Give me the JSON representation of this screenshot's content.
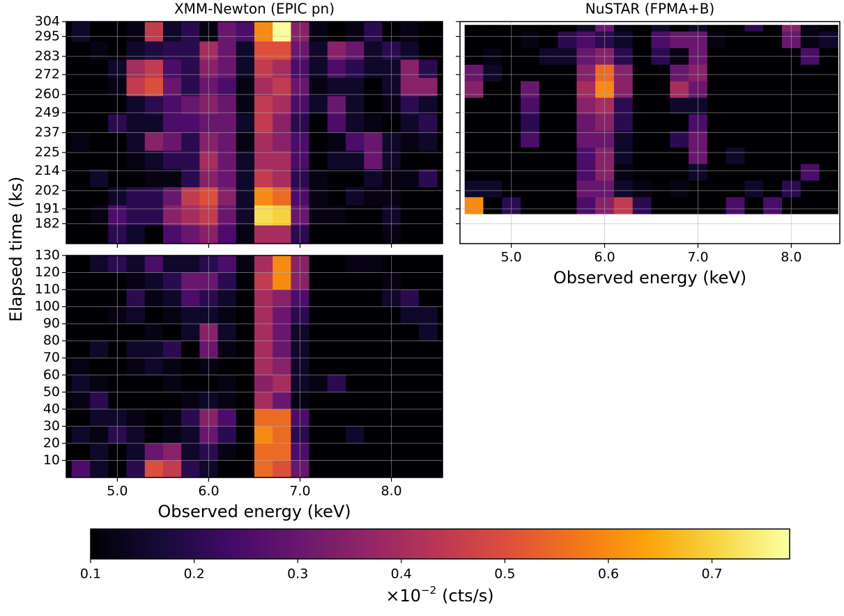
{
  "chart_data": [
    {
      "type": "heatmap",
      "title": "XMM-Newton (EPIC pn)",
      "ylabel": "Elapsed time (ks)",
      "xlim": [
        4.44,
        8.56
      ],
      "ylim": [
        170,
        304
      ],
      "xticks": [
        5,
        6,
        7,
        8
      ],
      "yticks": [
        182,
        191,
        202,
        214,
        225,
        237,
        249,
        260,
        272,
        283,
        295,
        304
      ],
      "xbins": [
        4.5,
        4.7,
        4.9,
        5.1,
        5.3,
        5.5,
        5.7,
        5.9,
        6.1,
        6.3,
        6.5,
        6.7,
        6.9,
        7.1,
        7.3,
        7.5,
        7.7,
        7.9,
        8.1,
        8.3,
        8.5
      ],
      "ybins": [
        304,
        292,
        281,
        270,
        259,
        248,
        237,
        226,
        215,
        204,
        193,
        181,
        170
      ],
      "values": [
        [
          0.15,
          0.1,
          0.1,
          0.12,
          0.45,
          0.15,
          0.2,
          0.12,
          0.3,
          0.25,
          0.6,
          0.77,
          0.35,
          0.12,
          0.1,
          0.12,
          0.2,
          0.1,
          0.12,
          0.1
        ],
        [
          0.1,
          0.12,
          0.1,
          0.15,
          0.18,
          0.2,
          0.2,
          0.4,
          0.3,
          0.15,
          0.5,
          0.5,
          0.3,
          0.15,
          0.35,
          0.3,
          0.15,
          0.2,
          0.15,
          0.1
        ],
        [
          0.1,
          0.1,
          0.15,
          0.4,
          0.45,
          0.25,
          0.2,
          0.35,
          0.3,
          0.15,
          0.45,
          0.4,
          0.25,
          0.15,
          0.25,
          0.2,
          0.15,
          0.15,
          0.35,
          0.2
        ],
        [
          0.1,
          0.1,
          0.12,
          0.45,
          0.5,
          0.3,
          0.2,
          0.3,
          0.25,
          0.12,
          0.4,
          0.45,
          0.3,
          0.12,
          0.15,
          0.15,
          0.1,
          0.15,
          0.35,
          0.35
        ],
        [
          0.1,
          0.1,
          0.1,
          0.15,
          0.2,
          0.25,
          0.3,
          0.35,
          0.3,
          0.12,
          0.45,
          0.4,
          0.25,
          0.15,
          0.3,
          0.15,
          0.1,
          0.12,
          0.2,
          0.15
        ],
        [
          0.1,
          0.1,
          0.2,
          0.15,
          0.15,
          0.25,
          0.25,
          0.3,
          0.3,
          0.15,
          0.45,
          0.35,
          0.2,
          0.1,
          0.25,
          0.15,
          0.12,
          0.1,
          0.15,
          0.2
        ],
        [
          0.12,
          0.1,
          0.1,
          0.15,
          0.35,
          0.3,
          0.2,
          0.35,
          0.3,
          0.12,
          0.4,
          0.35,
          0.25,
          0.1,
          0.12,
          0.25,
          0.3,
          0.15,
          0.12,
          0.15
        ],
        [
          0.1,
          0.1,
          0.1,
          0.12,
          0.15,
          0.2,
          0.2,
          0.4,
          0.3,
          0.15,
          0.4,
          0.4,
          0.25,
          0.1,
          0.15,
          0.15,
          0.3,
          0.15,
          0.1,
          0.1
        ],
        [
          0.1,
          0.15,
          0.1,
          0.1,
          0.12,
          0.12,
          0.2,
          0.35,
          0.3,
          0.15,
          0.45,
          0.4,
          0.2,
          0.12,
          0.1,
          0.1,
          0.15,
          0.12,
          0.12,
          0.2
        ],
        [
          0.1,
          0.1,
          0.15,
          0.2,
          0.2,
          0.3,
          0.45,
          0.5,
          0.35,
          0.15,
          0.6,
          0.55,
          0.25,
          0.12,
          0.1,
          0.15,
          0.12,
          0.12,
          0.1,
          0.1
        ],
        [
          0.1,
          0.12,
          0.25,
          0.2,
          0.2,
          0.35,
          0.4,
          0.45,
          0.3,
          0.15,
          0.72,
          0.7,
          0.3,
          0.12,
          0.12,
          0.1,
          0.1,
          0.15,
          0.1,
          0.1
        ],
        [
          0.1,
          0.1,
          0.2,
          0.15,
          0.1,
          0.25,
          0.3,
          0.35,
          0.25,
          0.12,
          0.4,
          0.4,
          0.2,
          0.1,
          0.1,
          0.1,
          0.1,
          0.12,
          0.1,
          0.1
        ]
      ]
    },
    {
      "type": "heatmap",
      "xlabel": "Observed energy (keV)",
      "xlim": [
        4.44,
        8.56
      ],
      "ylim": [
        0,
        130
      ],
      "xticks": [
        {
          "value": 5,
          "label": "5.0"
        },
        {
          "value": 6,
          "label": "6.0"
        },
        {
          "value": 7,
          "label": "7.0"
        },
        {
          "value": 8,
          "label": "8.0"
        }
      ],
      "yticks": [
        10,
        20,
        30,
        40,
        50,
        60,
        70,
        80,
        90,
        100,
        110,
        120,
        130
      ],
      "xbins": [
        4.5,
        4.7,
        4.9,
        5.1,
        5.3,
        5.5,
        5.7,
        5.9,
        6.1,
        6.3,
        6.5,
        6.7,
        6.9,
        7.1,
        7.3,
        7.5,
        7.7,
        7.9,
        8.1,
        8.3,
        8.5
      ],
      "ybins": [
        130,
        120,
        110,
        100,
        90,
        80,
        70,
        60,
        50,
        40,
        30,
        20,
        10,
        0
      ],
      "values": [
        [
          0.1,
          0.15,
          0.2,
          0.15,
          0.25,
          0.15,
          0.15,
          0.2,
          0.25,
          0.12,
          0.4,
          0.6,
          0.35,
          0.1,
          0.1,
          0.12,
          0.12,
          0.1,
          0.1,
          0.1
        ],
        [
          0.1,
          0.1,
          0.1,
          0.12,
          0.15,
          0.2,
          0.3,
          0.3,
          0.2,
          0.1,
          0.45,
          0.6,
          0.35,
          0.1,
          0.1,
          0.1,
          0.1,
          0.12,
          0.1,
          0.1
        ],
        [
          0.1,
          0.1,
          0.1,
          0.2,
          0.12,
          0.15,
          0.25,
          0.2,
          0.15,
          0.1,
          0.4,
          0.35,
          0.25,
          0.1,
          0.1,
          0.1,
          0.1,
          0.15,
          0.2,
          0.1
        ],
        [
          0.1,
          0.1,
          0.12,
          0.15,
          0.1,
          0.12,
          0.15,
          0.15,
          0.12,
          0.1,
          0.4,
          0.3,
          0.2,
          0.1,
          0.1,
          0.1,
          0.1,
          0.1,
          0.15,
          0.15
        ],
        [
          0.1,
          0.1,
          0.1,
          0.1,
          0.12,
          0.1,
          0.15,
          0.35,
          0.15,
          0.1,
          0.4,
          0.3,
          0.15,
          0.1,
          0.1,
          0.1,
          0.1,
          0.1,
          0.1,
          0.15
        ],
        [
          0.1,
          0.15,
          0.1,
          0.15,
          0.15,
          0.2,
          0.1,
          0.3,
          0.12,
          0.1,
          0.4,
          0.3,
          0.15,
          0.1,
          0.1,
          0.1,
          0.1,
          0.1,
          0.1,
          0.1
        ],
        [
          0.12,
          0.1,
          0.1,
          0.12,
          0.15,
          0.12,
          0.1,
          0.12,
          0.1,
          0.1,
          0.4,
          0.35,
          0.15,
          0.1,
          0.1,
          0.1,
          0.1,
          0.1,
          0.1,
          0.1
        ],
        [
          0.15,
          0.12,
          0.1,
          0.1,
          0.1,
          0.12,
          0.1,
          0.1,
          0.12,
          0.1,
          0.35,
          0.4,
          0.15,
          0.12,
          0.2,
          0.1,
          0.1,
          0.1,
          0.1,
          0.1
        ],
        [
          0.12,
          0.2,
          0.1,
          0.1,
          0.1,
          0.1,
          0.12,
          0.15,
          0.12,
          0.1,
          0.4,
          0.3,
          0.12,
          0.1,
          0.1,
          0.1,
          0.1,
          0.1,
          0.1,
          0.1
        ],
        [
          0.1,
          0.15,
          0.15,
          0.12,
          0.1,
          0.12,
          0.2,
          0.35,
          0.25,
          0.1,
          0.55,
          0.55,
          0.25,
          0.1,
          0.1,
          0.1,
          0.1,
          0.1,
          0.1,
          0.1
        ],
        [
          0.15,
          0.12,
          0.2,
          0.15,
          0.1,
          0.12,
          0.15,
          0.3,
          0.2,
          0.1,
          0.6,
          0.55,
          0.2,
          0.1,
          0.1,
          0.15,
          0.1,
          0.1,
          0.1,
          0.1
        ],
        [
          0.1,
          0.15,
          0.1,
          0.15,
          0.3,
          0.35,
          0.15,
          0.2,
          0.12,
          0.1,
          0.55,
          0.55,
          0.25,
          0.1,
          0.1,
          0.1,
          0.1,
          0.1,
          0.1,
          0.1
        ],
        [
          0.25,
          0.15,
          0.1,
          0.2,
          0.5,
          0.45,
          0.2,
          0.15,
          0.1,
          0.1,
          0.55,
          0.5,
          0.3,
          0.1,
          0.1,
          0.1,
          0.1,
          0.1,
          0.1,
          0.1
        ]
      ]
    },
    {
      "type": "heatmap",
      "title": "NuSTAR (FPMA+B)",
      "xlabel": "Observed energy (keV)",
      "xlim": [
        4.45,
        8.52
      ],
      "ylim": [
        170,
        304
      ],
      "xticks": [
        {
          "value": 5,
          "label": "5.0"
        },
        {
          "value": 6,
          "label": "6.0"
        },
        {
          "value": 7,
          "label": "7.0"
        },
        {
          "value": 8,
          "label": "8.0"
        }
      ],
      "yticks": [
        182,
        191,
        202,
        214,
        225,
        237,
        249,
        260,
        272,
        283,
        295,
        304
      ],
      "xbins": [
        4.5,
        4.7,
        4.9,
        5.1,
        5.3,
        5.5,
        5.7,
        5.9,
        6.1,
        6.3,
        6.5,
        6.7,
        6.9,
        7.1,
        7.3,
        7.5,
        7.7,
        7.9,
        8.1,
        8.3,
        8.5
      ],
      "ybins": [
        302,
        298,
        288,
        278,
        268,
        258,
        248,
        238,
        228,
        218,
        208,
        198,
        188
      ],
      "values": [
        [
          0.1,
          0.1,
          0.1,
          0.1,
          0.1,
          0.1,
          0.15,
          0.3,
          0.12,
          0.1,
          0.15,
          0.1,
          0.15,
          0.1,
          0.1,
          0.2,
          0.1,
          0.35,
          0.12,
          0.1
        ],
        [
          0.1,
          0.1,
          0.1,
          0.12,
          0.1,
          0.2,
          0.25,
          0.2,
          0.15,
          0.1,
          0.25,
          0.3,
          0.3,
          0.12,
          0.1,
          0.1,
          0.1,
          0.3,
          0.12,
          0.15
        ],
        [
          0.1,
          0.12,
          0.1,
          0.1,
          0.15,
          0.15,
          0.3,
          0.35,
          0.2,
          0.1,
          0.2,
          0.12,
          0.3,
          0.1,
          0.1,
          0.1,
          0.1,
          0.1,
          0.25,
          0.1
        ],
        [
          0.3,
          0.15,
          0.1,
          0.1,
          0.1,
          0.1,
          0.35,
          0.55,
          0.35,
          0.1,
          0.1,
          0.3,
          0.35,
          0.1,
          0.1,
          0.1,
          0.1,
          0.1,
          0.1,
          0.1
        ],
        [
          0.35,
          0.1,
          0.1,
          0.3,
          0.1,
          0.1,
          0.4,
          0.6,
          0.35,
          0.1,
          0.1,
          0.4,
          0.3,
          0.1,
          0.1,
          0.1,
          0.1,
          0.1,
          0.1,
          0.1
        ],
        [
          0.1,
          0.1,
          0.1,
          0.25,
          0.1,
          0.1,
          0.35,
          0.4,
          0.2,
          0.1,
          0.1,
          0.15,
          0.15,
          0.1,
          0.1,
          0.1,
          0.1,
          0.1,
          0.1,
          0.1
        ],
        [
          0.1,
          0.1,
          0.1,
          0.2,
          0.1,
          0.1,
          0.3,
          0.35,
          0.2,
          0.1,
          0.1,
          0.1,
          0.25,
          0.1,
          0.1,
          0.1,
          0.1,
          0.1,
          0.1,
          0.1
        ],
        [
          0.1,
          0.1,
          0.1,
          0.25,
          0.1,
          0.1,
          0.3,
          0.3,
          0.15,
          0.1,
          0.1,
          0.2,
          0.3,
          0.1,
          0.1,
          0.1,
          0.1,
          0.1,
          0.1,
          0.1
        ],
        [
          0.1,
          0.1,
          0.1,
          0.1,
          0.1,
          0.1,
          0.25,
          0.35,
          0.15,
          0.1,
          0.1,
          0.1,
          0.3,
          0.1,
          0.15,
          0.1,
          0.1,
          0.1,
          0.1,
          0.1
        ],
        [
          0.1,
          0.1,
          0.1,
          0.1,
          0.1,
          0.1,
          0.25,
          0.35,
          0.12,
          0.1,
          0.1,
          0.1,
          0.15,
          0.1,
          0.1,
          0.1,
          0.1,
          0.1,
          0.25,
          0.1
        ],
        [
          0.15,
          0.15,
          0.1,
          0.1,
          0.1,
          0.1,
          0.3,
          0.3,
          0.15,
          0.12,
          0.1,
          0.12,
          0.1,
          0.1,
          0.1,
          0.15,
          0.1,
          0.2,
          0.1,
          0.1
        ],
        [
          0.6,
          0.1,
          0.2,
          0.1,
          0.1,
          0.1,
          0.25,
          0.35,
          0.45,
          0.2,
          0.1,
          0.1,
          0.1,
          0.1,
          0.25,
          0.1,
          0.25,
          0.1,
          0.1,
          0.1
        ]
      ]
    }
  ],
  "colorbar": {
    "colormap": "inferno",
    "lim": [
      0.1,
      0.775
    ],
    "ticks": [
      0.1,
      0.2,
      0.3,
      0.4,
      0.5,
      0.6,
      0.7
    ],
    "label_base": "×10",
    "label_exponent": "−2",
    "label_unit": "(cts/s)"
  }
}
